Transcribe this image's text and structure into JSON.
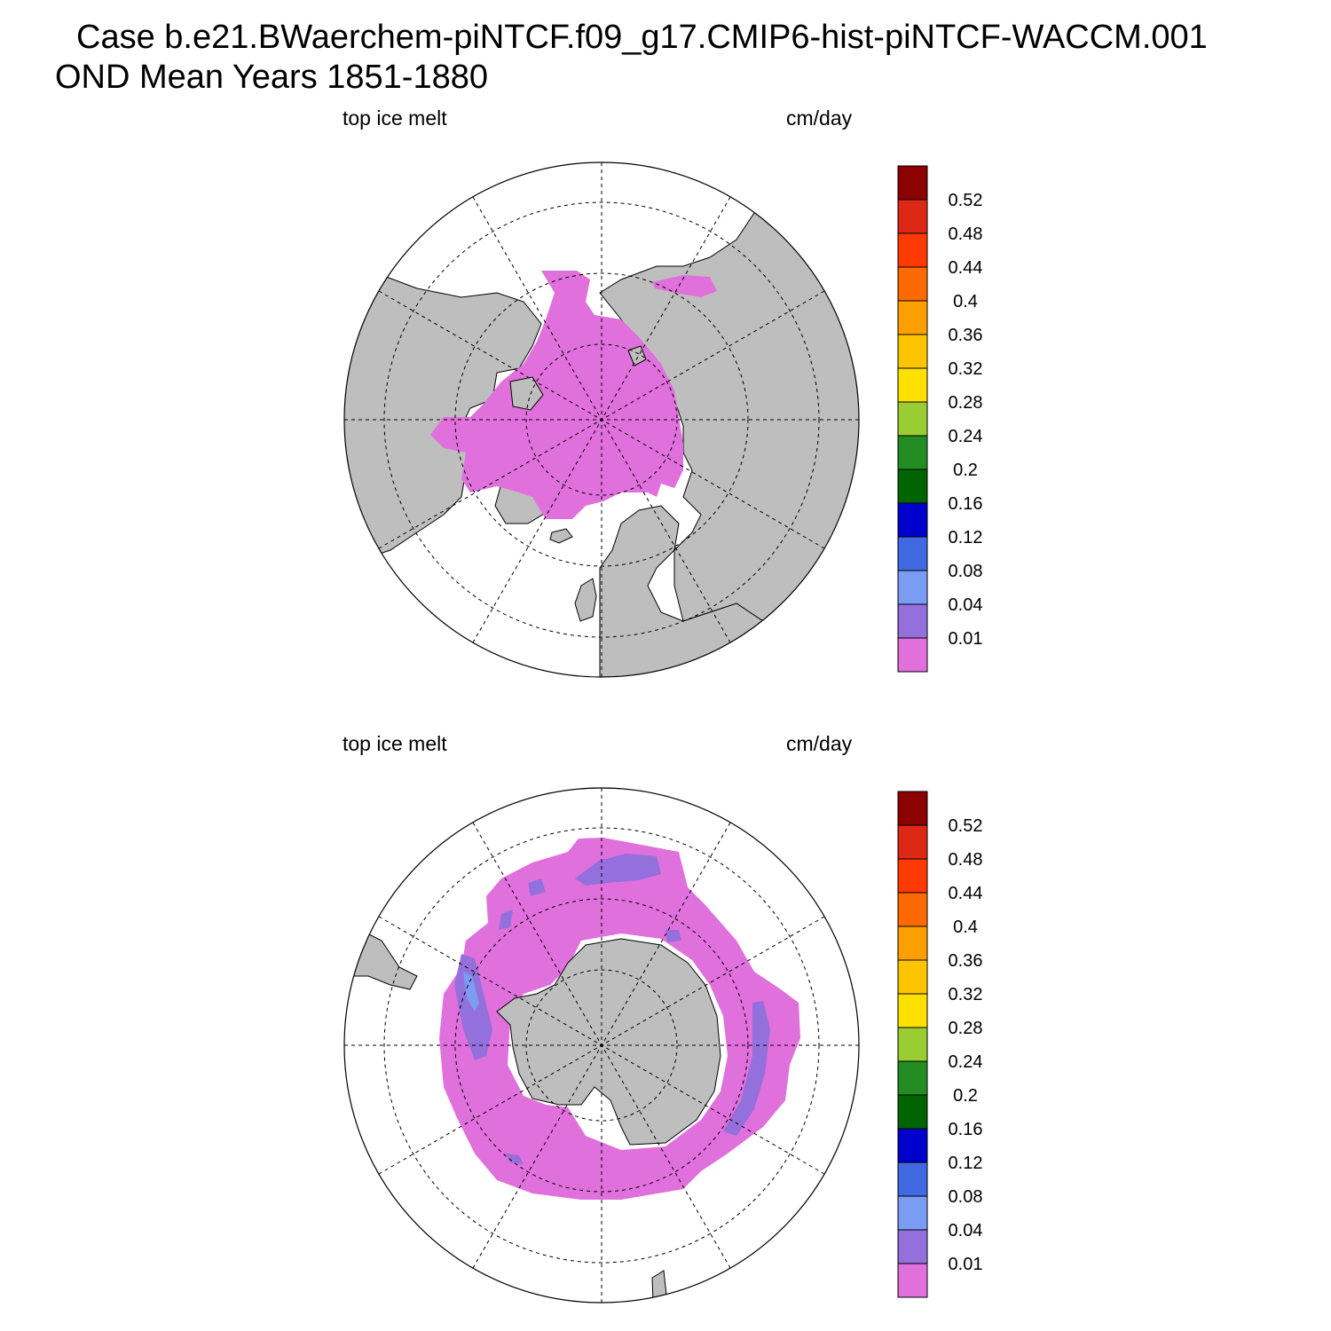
{
  "title": {
    "line1": "Case b.e21.BWaerchem-piNTCF.f09_g17.CMIP6-hist-piNTCF-WACCM.001",
    "line2": "OND Mean   Years 1851-1880"
  },
  "panels": [
    {
      "id": "arctic",
      "hemisphere": "north",
      "left_label": "top ice melt",
      "right_label": "cm/day"
    },
    {
      "id": "antarctic",
      "hemisphere": "south",
      "left_label": "top ice melt",
      "right_label": "cm/day"
    }
  ],
  "colorbar": {
    "levels": [
      "0.01",
      "0.04",
      "0.08",
      "0.12",
      "0.16",
      "0.2",
      "0.24",
      "0.28",
      "0.32",
      "0.36",
      "0.4",
      "0.44",
      "0.48",
      "0.52"
    ],
    "colors": [
      "#e070dc",
      "#9370db",
      "#7b9cf3",
      "#4169e1",
      "#0000cd",
      "#006400",
      "#228b22",
      "#9acd32",
      "#ffe000",
      "#ffc400",
      "#ffa000",
      "#ff6a00",
      "#ff3a00",
      "#dc2814",
      "#8b0000"
    ]
  },
  "map_colors": {
    "land": "#bebebe",
    "ice_low": "#e070dc",
    "ice_mid": "#9370db",
    "ice_high": "#7b9cf3"
  }
}
